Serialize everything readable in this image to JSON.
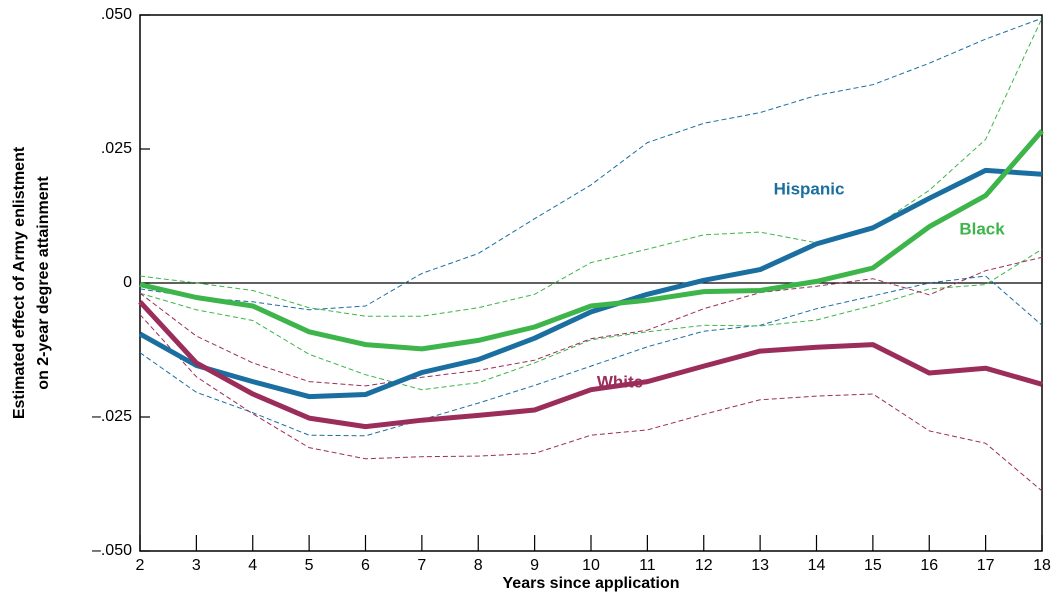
{
  "chart_data": {
    "type": "line",
    "x_label": "Years since application",
    "y_label": [
      "Estimated effect of Army enlistment",
      "on 2-year degree attainment"
    ],
    "x": [
      2,
      3,
      4,
      5,
      6,
      7,
      8,
      9,
      10,
      11,
      12,
      13,
      14,
      15,
      16,
      17,
      18
    ],
    "xlim": [
      2,
      18
    ],
    "xticks": [
      2,
      3,
      4,
      5,
      6,
      7,
      8,
      9,
      10,
      11,
      12,
      13,
      14,
      15,
      16,
      17,
      18
    ],
    "ylim": [
      -0.05,
      0.05
    ],
    "yticks": [
      {
        "value": -0.05,
        "label": "–.050"
      },
      {
        "value": -0.025,
        "label": "–.025"
      },
      0,
      {
        "value": 0.025,
        "label": ".025"
      },
      {
        "value": 0.05,
        "label": ".050"
      }
    ],
    "zero_line": true,
    "series": [
      {
        "name": "Hispanic",
        "color": "#1a6ea0",
        "values": [
          -0.0095,
          -0.0154,
          -0.0184,
          -0.0212,
          -0.0208,
          -0.0167,
          -0.0143,
          -0.0103,
          -0.0054,
          -0.0021,
          0.0005,
          0.0025,
          0.0073,
          0.0103,
          0.0158,
          0.021,
          0.0203
        ],
        "upper": [
          -0.0011,
          -0.0027,
          -0.0035,
          -0.005,
          -0.0043,
          0.0018,
          0.0055,
          0.012,
          0.0183,
          0.0262,
          0.0298,
          0.0318,
          0.035,
          0.037,
          0.041,
          0.0455,
          0.0494
        ],
        "lower": [
          -0.013,
          -0.0204,
          -0.0242,
          -0.0284,
          -0.0285,
          -0.0255,
          -0.0224,
          -0.0191,
          -0.0155,
          -0.0119,
          -0.009,
          -0.0079,
          -0.0048,
          -0.0024,
          0,
          0.0013,
          -0.0079
        ]
      },
      {
        "name": "Black",
        "color": "#3db54a",
        "values": [
          -0.0003,
          -0.0027,
          -0.0043,
          -0.0091,
          -0.0115,
          -0.0123,
          -0.0107,
          -0.0082,
          -0.0043,
          -0.0032,
          -0.0016,
          -0.0014,
          0.0003,
          0.0028,
          0.0105,
          0.0163,
          0.0284
        ],
        "upper": [
          0.0013,
          0,
          -0.0014,
          -0.0046,
          -0.0062,
          -0.0062,
          -0.0046,
          -0.0021,
          0.0038,
          0.0063,
          0.009,
          0.0095,
          0.0075,
          0.0103,
          0.0173,
          0.0268,
          0.0494
        ],
        "lower": [
          -0.0019,
          -0.005,
          -0.007,
          -0.0133,
          -0.0171,
          -0.0199,
          -0.0186,
          -0.0149,
          -0.0106,
          -0.0091,
          -0.0079,
          -0.008,
          -0.0069,
          -0.0042,
          -0.0011,
          -0.0003,
          0.0063
        ]
      },
      {
        "name": "White",
        "color": "#9b2d5a",
        "values": [
          -0.0035,
          -0.0149,
          -0.0207,
          -0.0252,
          -0.0268,
          -0.0256,
          -0.0247,
          -0.0237,
          -0.0199,
          -0.0184,
          -0.0155,
          -0.0127,
          -0.012,
          -0.0115,
          -0.0168,
          -0.0159,
          -0.0189
        ],
        "upper": [
          -0.0019,
          -0.0099,
          -0.0149,
          -0.0184,
          -0.0192,
          -0.0176,
          -0.0163,
          -0.0144,
          -0.0104,
          -0.0088,
          -0.0048,
          -0.0018,
          -0.0006,
          0.0008,
          -0.0022,
          0.0023,
          0.0048
        ],
        "lower": [
          -0.0059,
          -0.0175,
          -0.0244,
          -0.0307,
          -0.0328,
          -0.0324,
          -0.0323,
          -0.0318,
          -0.0284,
          -0.0274,
          -0.0245,
          -0.0218,
          -0.0211,
          -0.0207,
          -0.0276,
          -0.0299,
          -0.0388
        ]
      }
    ]
  }
}
